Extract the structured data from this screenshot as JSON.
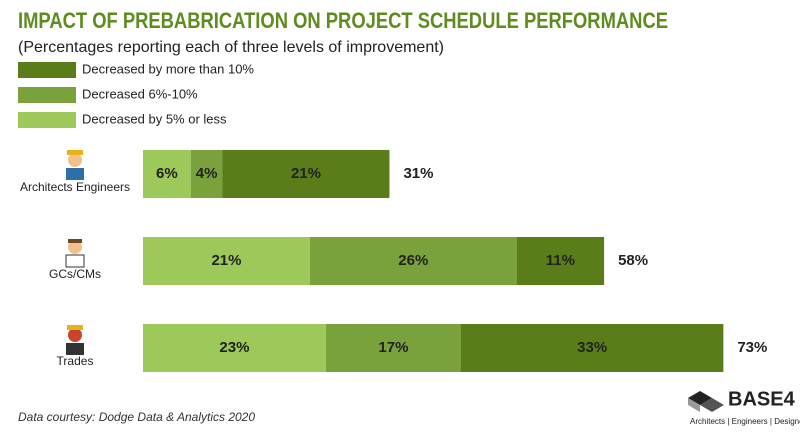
{
  "chart_data": {
    "type": "stacked-bar",
    "title": "IMPACT OF PREBABRICATION ON PROJECT SCHEDULE PERFORMANCE",
    "subtitle": "(Percentages reporting each of three levels of improvement)",
    "categories": [
      "Architects Engineers",
      "GCs/CMs",
      "Trades"
    ],
    "series": [
      {
        "name": "Decreased by more than 10%",
        "color": "#5a7d1a",
        "values": [
          21,
          11,
          33
        ],
        "value_labels": [
          "21%",
          "11%",
          "33%"
        ]
      },
      {
        "name": "Decreased 6%-10%",
        "color": "#7aa23c",
        "values": [
          4,
          26,
          17
        ],
        "value_labels": [
          "4%",
          "26%",
          "17%"
        ]
      },
      {
        "name": "Decreased by 5% or less",
        "color": "#9dc85a",
        "values": [
          6,
          21,
          23
        ],
        "value_labels": [
          "6%",
          "21%",
          "23%"
        ]
      }
    ],
    "totals": [
      31,
      58,
      73
    ],
    "total_labels": [
      "31%",
      "58%",
      "73%"
    ],
    "source": "Data courtesy: Dodge Data & Analytics 2020",
    "logo": {
      "name": "BASE4",
      "tagline": "Architects | Engineers | Designers"
    }
  }
}
